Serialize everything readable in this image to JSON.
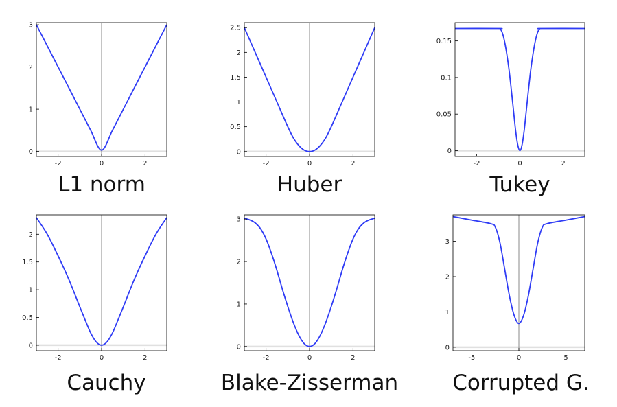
{
  "chart_data": [
    {
      "type": "line",
      "title": "L1 norm",
      "xlim": [
        -3,
        3
      ],
      "ylim": [
        -0.12,
        3.05
      ],
      "xticks": [
        -2,
        0,
        2
      ],
      "yticks": [
        0,
        1,
        2,
        3
      ],
      "x": [
        -3,
        -2.5,
        -2,
        -1.5,
        -1,
        -0.5,
        0,
        0.5,
        1,
        1.5,
        2,
        2.5,
        3
      ],
      "series": [
        {
          "values": [
            3,
            2.5,
            2,
            1.5,
            1,
            0.5,
            0.03,
            0.5,
            1,
            1.5,
            2,
            2.5,
            3
          ]
        }
      ],
      "colors": {
        "curve": "#2f3cf5",
        "axis_line": "#8a8a8a",
        "baseline": "#e0e0e0"
      }
    },
    {
      "type": "line",
      "title": "Huber",
      "xlim": [
        -3,
        3
      ],
      "ylim": [
        -0.1,
        2.6
      ],
      "xticks": [
        -2,
        0,
        2
      ],
      "yticks": [
        0,
        0.5,
        1,
        1.5,
        2,
        2.5
      ],
      "x": [
        -3,
        -2.5,
        -2,
        -1.5,
        -1,
        -0.75,
        -0.5,
        -0.25,
        0,
        0.25,
        0.5,
        0.75,
        1,
        1.5,
        2,
        2.5,
        3
      ],
      "series": [
        {
          "values": [
            2.5,
            2.0,
            1.5,
            1.0,
            0.5,
            0.28,
            0.125,
            0.03,
            0.0,
            0.03,
            0.125,
            0.28,
            0.5,
            1.0,
            1.5,
            2.0,
            2.5
          ]
        }
      ],
      "colors": {
        "curve": "#2f3cf5",
        "axis_line": "#8a8a8a",
        "baseline": "#e0e0e0"
      }
    },
    {
      "type": "line",
      "title": "Tukey",
      "xlim": [
        -3,
        3
      ],
      "ylim": [
        -0.008,
        0.175
      ],
      "xticks": [
        -2,
        0,
        2
      ],
      "yticks": [
        0,
        0.05,
        0.1,
        0.15
      ],
      "x": [
        -3,
        -1,
        -0.9,
        -0.8,
        -0.7,
        -0.6,
        -0.5,
        -0.4,
        -0.3,
        -0.2,
        -0.1,
        0,
        0.1,
        0.2,
        0.3,
        0.4,
        0.5,
        0.6,
        0.7,
        0.8,
        0.9,
        1,
        3
      ],
      "series": [
        {
          "values": [
            0.167,
            0.167,
            0.166,
            0.16,
            0.148,
            0.131,
            0.11,
            0.084,
            0.056,
            0.028,
            0.008,
            0.0,
            0.008,
            0.028,
            0.056,
            0.084,
            0.11,
            0.131,
            0.148,
            0.16,
            0.166,
            0.167,
            0.167
          ]
        }
      ],
      "colors": {
        "curve": "#2f3cf5",
        "axis_line": "#8a8a8a",
        "baseline": "#e0e0e0"
      }
    },
    {
      "type": "line",
      "title": "Cauchy",
      "xlim": [
        -3,
        3
      ],
      "ylim": [
        -0.1,
        2.35
      ],
      "xticks": [
        -2,
        0,
        2
      ],
      "yticks": [
        0,
        0.5,
        1,
        1.5,
        2
      ],
      "x": [
        -3,
        -2.5,
        -2,
        -1.5,
        -1,
        -0.75,
        -0.5,
        -0.25,
        0,
        0.25,
        0.5,
        0.75,
        1,
        1.5,
        2,
        2.5,
        3
      ],
      "series": [
        {
          "values": [
            2.3,
            2.0,
            1.61,
            1.18,
            0.69,
            0.45,
            0.22,
            0.06,
            0.0,
            0.06,
            0.22,
            0.45,
            0.69,
            1.18,
            1.61,
            2.0,
            2.3
          ]
        }
      ],
      "colors": {
        "curve": "#2f3cf5",
        "axis_line": "#8a8a8a",
        "baseline": "#e0e0e0"
      }
    },
    {
      "type": "line",
      "title": "Blake-Zisserman",
      "xlim": [
        -3,
        3
      ],
      "ylim": [
        -0.1,
        3.1
      ],
      "xticks": [
        -2,
        0,
        2
      ],
      "yticks": [
        0,
        1,
        2,
        3
      ],
      "x": [
        -3,
        -2.75,
        -2.5,
        -2.25,
        -2,
        -1.75,
        -1.5,
        -1.25,
        -1,
        -0.75,
        -0.5,
        -0.25,
        0,
        0.25,
        0.5,
        0.75,
        1,
        1.25,
        1.5,
        1.75,
        2,
        2.25,
        2.5,
        2.75,
        3
      ],
      "series": [
        {
          "values": [
            3.02,
            2.98,
            2.91,
            2.77,
            2.53,
            2.19,
            1.79,
            1.35,
            0.94,
            0.57,
            0.27,
            0.07,
            0.0,
            0.07,
            0.27,
            0.57,
            0.94,
            1.35,
            1.79,
            2.19,
            2.53,
            2.77,
            2.91,
            2.98,
            3.02
          ]
        }
      ],
      "colors": {
        "curve": "#2f3cf5",
        "axis_line": "#8a8a8a",
        "baseline": "#e0e0e0"
      }
    },
    {
      "type": "line",
      "title": "Corrupted G.",
      "xlim": [
        -7,
        7
      ],
      "ylim": [
        -0.1,
        3.75
      ],
      "xticks": [
        -5,
        0,
        5
      ],
      "yticks": [
        0,
        1,
        2,
        3
      ],
      "x": [
        -7,
        -5,
        -3,
        -2.5,
        -2,
        -1.5,
        -1,
        -0.5,
        0,
        0.5,
        1,
        1.5,
        2,
        2.5,
        3,
        5,
        7
      ],
      "series": [
        {
          "values": [
            3.7,
            3.6,
            3.5,
            3.4,
            2.95,
            2.2,
            1.45,
            0.9,
            0.67,
            0.9,
            1.45,
            2.2,
            2.95,
            3.4,
            3.5,
            3.6,
            3.7
          ]
        }
      ],
      "colors": {
        "curve": "#2f3cf5",
        "axis_line": "#8a8a8a",
        "baseline": "#e0e0e0"
      }
    }
  ]
}
